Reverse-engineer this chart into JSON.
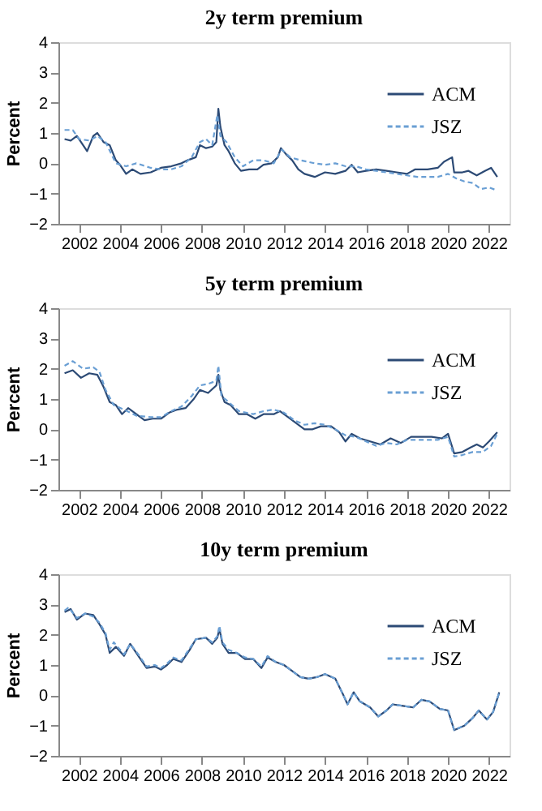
{
  "chart_data": [
    {
      "type": "line",
      "title": "2y term premium",
      "ylabel": "Percent",
      "xlim": [
        2001,
        2023
      ],
      "xticks": [
        2002,
        2004,
        2006,
        2008,
        2010,
        2012,
        2014,
        2016,
        2018,
        2020,
        2022
      ],
      "ylim": [
        -2,
        4
      ],
      "yticks": [
        -2,
        -1,
        0,
        1,
        2,
        3,
        4
      ],
      "legend": "top right",
      "grid": false,
      "series": [
        {
          "name": "ACM",
          "color": "#2c4a75",
          "line_style": "solid",
          "x": [
            2001.3,
            2001.6,
            2001.9,
            2002.2,
            2002.4,
            2002.7,
            2002.9,
            2003.2,
            2003.5,
            2003.8,
            2004.0,
            2004.3,
            2004.6,
            2005.0,
            2005.5,
            2006.0,
            2006.5,
            2007.0,
            2007.3,
            2007.7,
            2007.9,
            2008.2,
            2008.5,
            2008.7,
            2008.8,
            2008.9,
            2009.1,
            2009.3,
            2009.6,
            2009.9,
            2010.3,
            2010.7,
            2011.0,
            2011.4,
            2011.7,
            2011.85,
            2012.1,
            2012.4,
            2012.7,
            2013.0,
            2013.5,
            2014.0,
            2014.5,
            2015.0,
            2015.3,
            2015.6,
            2016.0,
            2016.5,
            2017.0,
            2017.5,
            2018.0,
            2018.4,
            2019.0,
            2019.5,
            2019.8,
            2020.2,
            2020.3,
            2020.7,
            2021.0,
            2021.4,
            2021.8,
            2022.1,
            2022.4
          ],
          "values": [
            0.8,
            0.75,
            0.9,
            0.6,
            0.4,
            0.9,
            1.0,
            0.7,
            0.6,
            0.1,
            -0.05,
            -0.35,
            -0.2,
            -0.35,
            -0.3,
            -0.15,
            -0.1,
            0.0,
            0.1,
            0.2,
            0.6,
            0.5,
            0.55,
            0.7,
            1.8,
            1.2,
            0.6,
            0.4,
            0.0,
            -0.25,
            -0.2,
            -0.2,
            -0.05,
            0.0,
            0.2,
            0.5,
            0.3,
            0.1,
            -0.2,
            -0.35,
            -0.45,
            -0.3,
            -0.35,
            -0.25,
            -0.05,
            -0.3,
            -0.25,
            -0.2,
            -0.25,
            -0.3,
            -0.35,
            -0.2,
            -0.2,
            -0.15,
            0.05,
            0.2,
            -0.3,
            -0.3,
            -0.25,
            -0.4,
            -0.25,
            -0.15,
            -0.45
          ]
        },
        {
          "name": "JSZ",
          "color": "#6a9fd4",
          "line_style": "dashed",
          "x": [
            2001.3,
            2001.7,
            2002.0,
            2002.5,
            2002.9,
            2003.3,
            2003.8,
            2004.3,
            2004.8,
            2005.5,
            2006.0,
            2006.5,
            2007.0,
            2007.5,
            2007.9,
            2008.2,
            2008.5,
            2008.75,
            2008.9,
            2009.2,
            2009.6,
            2010.0,
            2010.5,
            2011.0,
            2011.5,
            2011.9,
            2012.3,
            2012.8,
            2013.5,
            2014.0,
            2014.5,
            2015.0,
            2015.5,
            2016.0,
            2016.5,
            2017.0,
            2017.5,
            2018.0,
            2018.5,
            2019.0,
            2019.5,
            2020.0,
            2020.4,
            2020.8,
            2021.2,
            2021.6,
            2022.0,
            2022.4
          ],
          "values": [
            1.1,
            1.1,
            0.8,
            0.75,
            0.9,
            0.7,
            0.0,
            -0.1,
            0.0,
            -0.15,
            -0.2,
            -0.2,
            -0.1,
            0.2,
            0.7,
            0.8,
            0.6,
            1.6,
            0.9,
            0.7,
            0.2,
            -0.1,
            0.1,
            0.1,
            0.0,
            0.45,
            0.2,
            0.1,
            0.0,
            -0.05,
            0.0,
            -0.1,
            -0.1,
            -0.2,
            -0.25,
            -0.3,
            -0.35,
            -0.4,
            -0.45,
            -0.45,
            -0.45,
            -0.35,
            -0.5,
            -0.6,
            -0.65,
            -0.85,
            -0.8,
            -0.9
          ]
        }
      ]
    },
    {
      "type": "line",
      "title": "5y term premium",
      "ylabel": "Percent",
      "xlim": [
        2001,
        2023
      ],
      "xticks": [
        2002,
        2004,
        2006,
        2008,
        2010,
        2012,
        2014,
        2016,
        2018,
        2020,
        2022
      ],
      "ylim": [
        -2,
        4
      ],
      "yticks": [
        -2,
        -1,
        0,
        1,
        2,
        3,
        4
      ],
      "legend": "top right",
      "grid": false,
      "series": [
        {
          "name": "ACM",
          "color": "#2c4a75",
          "line_style": "solid",
          "x": [
            2001.3,
            2001.7,
            2002.1,
            2002.5,
            2002.9,
            2003.2,
            2003.5,
            2003.8,
            2004.1,
            2004.4,
            2004.8,
            2005.2,
            2005.6,
            2006.0,
            2006.4,
            2006.8,
            2007.2,
            2007.6,
            2007.9,
            2008.3,
            2008.7,
            2008.8,
            2008.9,
            2009.1,
            2009.4,
            2009.8,
            2010.2,
            2010.6,
            2011.0,
            2011.5,
            2011.8,
            2012.2,
            2012.6,
            2013.0,
            2013.4,
            2013.8,
            2014.3,
            2014.7,
            2015.0,
            2015.3,
            2015.7,
            2016.2,
            2016.7,
            2017.2,
            2017.7,
            2018.2,
            2018.7,
            2019.2,
            2019.7,
            2020.0,
            2020.3,
            2020.7,
            2021.1,
            2021.4,
            2021.7,
            2022.0,
            2022.4
          ],
          "values": [
            1.85,
            1.95,
            1.7,
            1.85,
            1.8,
            1.4,
            0.9,
            0.8,
            0.5,
            0.7,
            0.5,
            0.3,
            0.35,
            0.35,
            0.55,
            0.65,
            0.7,
            1.0,
            1.3,
            1.2,
            1.45,
            1.8,
            1.3,
            0.9,
            0.8,
            0.5,
            0.5,
            0.35,
            0.5,
            0.5,
            0.6,
            0.4,
            0.2,
            0.0,
            0.0,
            0.1,
            0.1,
            -0.1,
            -0.4,
            -0.15,
            -0.3,
            -0.4,
            -0.5,
            -0.3,
            -0.45,
            -0.25,
            -0.25,
            -0.25,
            -0.3,
            -0.15,
            -0.8,
            -0.75,
            -0.6,
            -0.5,
            -0.6,
            -0.4,
            -0.1
          ]
        },
        {
          "name": "JSZ",
          "color": "#6a9fd4",
          "line_style": "dashed",
          "x": [
            2001.3,
            2001.7,
            2002.2,
            2002.7,
            2003.0,
            2003.3,
            2003.7,
            2004.2,
            2004.8,
            2005.5,
            2006.0,
            2006.5,
            2007.0,
            2007.5,
            2007.9,
            2008.3,
            2008.7,
            2008.8,
            2008.95,
            2009.3,
            2009.8,
            2010.5,
            2011.0,
            2011.5,
            2012.0,
            2012.5,
            2013.0,
            2013.5,
            2014.0,
            2014.5,
            2015.0,
            2015.5,
            2016.0,
            2016.5,
            2017.0,
            2017.5,
            2018.0,
            2018.5,
            2019.0,
            2019.5,
            2020.0,
            2020.3,
            2020.7,
            2021.2,
            2021.7,
            2022.1,
            2022.4
          ],
          "values": [
            2.1,
            2.25,
            2.0,
            2.05,
            1.9,
            1.3,
            0.8,
            0.65,
            0.45,
            0.4,
            0.4,
            0.6,
            0.75,
            1.1,
            1.45,
            1.5,
            1.6,
            2.1,
            1.1,
            0.9,
            0.6,
            0.5,
            0.6,
            0.65,
            0.55,
            0.3,
            0.15,
            0.2,
            0.15,
            0.0,
            -0.2,
            -0.25,
            -0.4,
            -0.55,
            -0.45,
            -0.5,
            -0.35,
            -0.35,
            -0.35,
            -0.35,
            -0.25,
            -0.9,
            -0.85,
            -0.75,
            -0.75,
            -0.55,
            -0.15
          ]
        }
      ]
    },
    {
      "type": "line",
      "title": "10y term premium",
      "ylabel": "Percent",
      "xlim": [
        2001,
        2023
      ],
      "xticks": [
        2002,
        2004,
        2006,
        2008,
        2010,
        2012,
        2014,
        2016,
        2018,
        2020,
        2022
      ],
      "ylim": [
        -2,
        4
      ],
      "yticks": [
        -2,
        -1,
        0,
        1,
        2,
        3,
        4
      ],
      "legend": "top right",
      "grid": false,
      "series": [
        {
          "name": "ACM",
          "color": "#2c4a75",
          "line_style": "solid",
          "x": [
            2001.3,
            2001.6,
            2001.9,
            2002.3,
            2002.7,
            2003.0,
            2003.3,
            2003.5,
            2003.8,
            2004.2,
            2004.5,
            2004.9,
            2005.3,
            2005.7,
            2006.0,
            2006.3,
            2006.6,
            2007.0,
            2007.4,
            2007.7,
            2008.2,
            2008.5,
            2008.75,
            2008.85,
            2009.0,
            2009.3,
            2009.7,
            2010.1,
            2010.5,
            2010.9,
            2011.2,
            2011.6,
            2012.0,
            2012.4,
            2012.8,
            2013.2,
            2013.6,
            2014.0,
            2014.5,
            2014.9,
            2015.1,
            2015.4,
            2015.7,
            2016.2,
            2016.6,
            2017.0,
            2017.3,
            2017.8,
            2018.3,
            2018.7,
            2019.1,
            2019.6,
            2020.0,
            2020.3,
            2020.8,
            2021.2,
            2021.5,
            2021.9,
            2022.2,
            2022.5
          ],
          "values": [
            2.75,
            2.85,
            2.5,
            2.7,
            2.65,
            2.35,
            2.0,
            1.4,
            1.6,
            1.3,
            1.7,
            1.3,
            0.9,
            0.95,
            0.85,
            1.0,
            1.2,
            1.1,
            1.5,
            1.85,
            1.9,
            1.7,
            1.9,
            2.2,
            1.7,
            1.4,
            1.4,
            1.2,
            1.2,
            0.9,
            1.25,
            1.1,
            1.0,
            0.8,
            0.6,
            0.55,
            0.6,
            0.7,
            0.55,
            0.0,
            -0.3,
            0.1,
            -0.2,
            -0.4,
            -0.7,
            -0.5,
            -0.3,
            -0.35,
            -0.4,
            -0.15,
            -0.2,
            -0.45,
            -0.5,
            -1.15,
            -1.0,
            -0.75,
            -0.5,
            -0.8,
            -0.55,
            0.1
          ]
        },
        {
          "name": "JSZ",
          "color": "#6a9fd4",
          "line_style": "dashed",
          "x": [
            2001.3,
            2001.5,
            2001.9,
            2002.3,
            2002.7,
            2003.0,
            2003.3,
            2003.5,
            2003.7,
            2004.2,
            2004.5,
            2004.9,
            2005.3,
            2005.7,
            2006.0,
            2006.3,
            2006.6,
            2007.0,
            2007.4,
            2007.7,
            2008.2,
            2008.5,
            2008.75,
            2008.85,
            2009.0,
            2009.3,
            2009.7,
            2010.1,
            2010.5,
            2010.9,
            2011.2,
            2011.6,
            2012.0,
            2012.4,
            2012.8,
            2013.2,
            2013.6,
            2014.0,
            2014.5,
            2014.9,
            2015.1,
            2015.4,
            2015.7,
            2016.2,
            2016.6,
            2017.0,
            2017.3,
            2017.8,
            2018.3,
            2018.7,
            2019.1,
            2019.6,
            2020.0,
            2020.3,
            2020.8,
            2021.2,
            2021.5,
            2021.9,
            2022.2,
            2022.5
          ],
          "values": [
            2.8,
            2.9,
            2.55,
            2.7,
            2.6,
            2.4,
            2.05,
            1.5,
            1.75,
            1.35,
            1.7,
            1.35,
            0.95,
            1.0,
            0.9,
            1.05,
            1.25,
            1.15,
            1.55,
            1.85,
            1.9,
            1.75,
            1.95,
            2.3,
            1.75,
            1.5,
            1.4,
            1.25,
            1.2,
            0.95,
            1.3,
            1.1,
            1.0,
            0.8,
            0.6,
            0.55,
            0.6,
            0.7,
            0.55,
            0.0,
            -0.3,
            0.1,
            -0.2,
            -0.4,
            -0.7,
            -0.5,
            -0.3,
            -0.35,
            -0.4,
            -0.15,
            -0.2,
            -0.45,
            -0.5,
            -1.15,
            -1.0,
            -0.75,
            -0.5,
            -0.8,
            -0.55,
            0.1
          ]
        }
      ]
    }
  ]
}
